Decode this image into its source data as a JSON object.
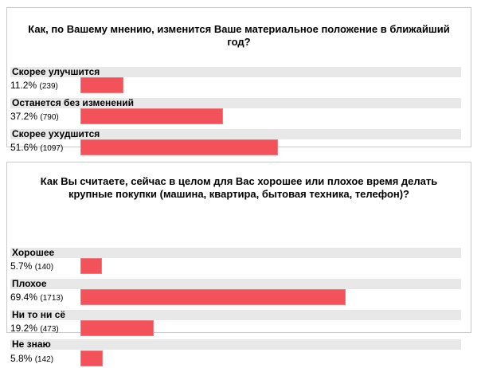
{
  "colors": {
    "bar": "#f4525b",
    "label_bg": "#e8e8e8",
    "border": "#c9c9c9"
  },
  "polls": [
    {
      "question": "Как, по Вашему мнению, изменится Ваше материальное положение в ближайший год?",
      "options": [
        {
          "label": "Скорее улучшится",
          "percent": "11.2%",
          "count": "(239)"
        },
        {
          "label": "Останется без изменений",
          "percent": "37.2%",
          "count": "(790)"
        },
        {
          "label": "Скорее ухудшится",
          "percent": "51.6%",
          "count": "(1097)"
        }
      ]
    },
    {
      "question": "Как Вы считаете, сейчас в целом для Вас хорошее или плохое время делать крупные покупки (машина, квартира, бытовая техника, телефон)?",
      "options": [
        {
          "label": "Хорошее",
          "percent": "5.7%",
          "count": "(140)"
        },
        {
          "label": "Плохое",
          "percent": "69.4%",
          "count": "(1713)"
        },
        {
          "label": "Ни то ни сё",
          "percent": "19.2%",
          "count": "(473)"
        },
        {
          "label": "Не знаю",
          "percent": "5.8%",
          "count": "(142)"
        }
      ]
    }
  ],
  "chart_data": [
    {
      "type": "bar",
      "title": "Как, по Вашему мнению, изменится Ваше материальное положение в ближайший год?",
      "categories": [
        "Скорее улучшится",
        "Останется без изменений",
        "Скорее ухудшится"
      ],
      "values": [
        11.2,
        37.2,
        51.6
      ],
      "counts": [
        239,
        790,
        1097
      ]
    },
    {
      "type": "bar",
      "title": "Как Вы считаете, сейчас в целом для Вас хорошее или плохое время делать крупные покупки (машина, квартира, бытовая техника, телефон)?",
      "categories": [
        "Хорошее",
        "Плохое",
        "Ни то ни сё",
        "Не знаю"
      ],
      "values": [
        5.7,
        69.4,
        19.2,
        5.8
      ],
      "counts": [
        140,
        1713,
        473,
        142
      ]
    }
  ]
}
